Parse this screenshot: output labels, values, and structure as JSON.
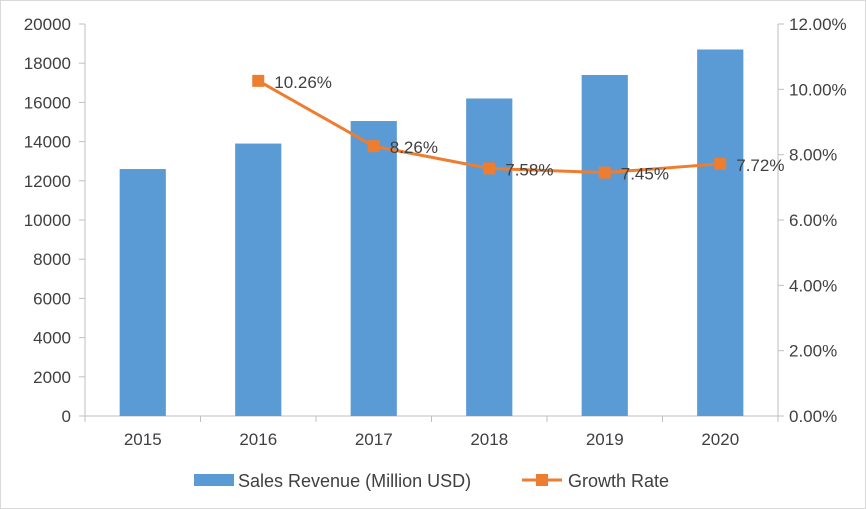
{
  "chart_data": {
    "type": "bar",
    "categories": [
      "2015",
      "2016",
      "2017",
      "2018",
      "2019",
      "2020"
    ],
    "series": [
      {
        "name": "Sales Revenue (Million USD)",
        "type": "bar",
        "axis": "left",
        "color": "#5b9bd5",
        "values": [
          12600,
          13900,
          15050,
          16200,
          17400,
          18700
        ]
      },
      {
        "name": "Growth Rate",
        "type": "line",
        "axis": "right",
        "color": "#ed7d31",
        "values": [
          null,
          10.26,
          8.26,
          7.58,
          7.45,
          7.72
        ],
        "data_labels": [
          "",
          "10.26%",
          "8.26%",
          "7.58%",
          "7.45%",
          "7.72%"
        ]
      }
    ],
    "title": "",
    "xlabel": "",
    "ylabel": "",
    "y_left": {
      "lim": [
        0,
        20000
      ],
      "ticks": [
        0,
        2000,
        4000,
        6000,
        8000,
        10000,
        12000,
        14000,
        16000,
        18000,
        20000
      ],
      "tick_labels": [
        "0",
        "2000",
        "4000",
        "6000",
        "8000",
        "10000",
        "12000",
        "14000",
        "16000",
        "18000",
        "20000"
      ]
    },
    "y_right": {
      "lim": [
        0,
        12
      ],
      "ticks": [
        0,
        2,
        4,
        6,
        8,
        10,
        12
      ],
      "tick_labels": [
        "0.00%",
        "2.00%",
        "4.00%",
        "6.00%",
        "8.00%",
        "10.00%",
        "12.00%"
      ]
    },
    "grid": false,
    "legend_position": "bottom",
    "legend": [
      {
        "label": "Sales Revenue (Million USD)",
        "marker": "bar",
        "color": "#5b9bd5"
      },
      {
        "label": "Growth Rate",
        "marker": "line-square",
        "color": "#ed7d31"
      }
    ]
  }
}
